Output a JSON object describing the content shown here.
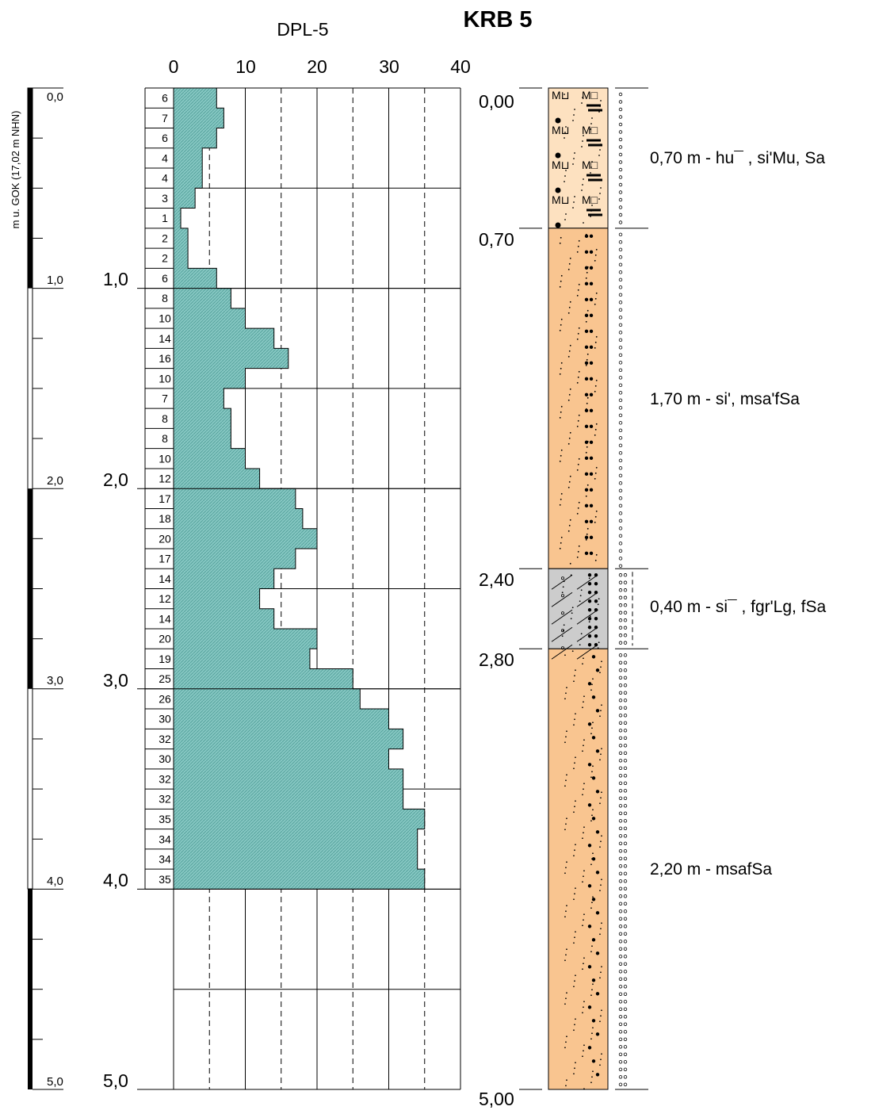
{
  "title": "KRB 5",
  "depth_axis": {
    "label": "m u. GOK (17,02 m NHN)",
    "ticks": [
      "0,0",
      "1,0",
      "2,0",
      "3,0",
      "4,0",
      "5,0"
    ]
  },
  "chart_data": {
    "type": "bar",
    "title": "DPL-5",
    "orientation": "horizontal-step",
    "x_ticks": [
      "0",
      "10",
      "20",
      "30",
      "40"
    ],
    "xlim": [
      0,
      40
    ],
    "depth_labels": [
      "1,0",
      "2,0",
      "3,0",
      "4,0",
      "5,0"
    ],
    "ylim": [
      0,
      5
    ],
    "interval_m": 0.1,
    "blow_counts": [
      6,
      7,
      6,
      4,
      4,
      3,
      1,
      2,
      2,
      6,
      8,
      10,
      14,
      16,
      10,
      7,
      8,
      8,
      10,
      12,
      17,
      18,
      20,
      17,
      14,
      12,
      14,
      20,
      19,
      25,
      26,
      30,
      32,
      30,
      32,
      32,
      35,
      34,
      34,
      35
    ],
    "grid": true,
    "fill_color": "#86c7c2"
  },
  "profile": {
    "depth_labels": [
      "0,00",
      "0,70",
      "2,40",
      "2,80",
      "5,00"
    ],
    "layers": [
      {
        "top": 0.0,
        "bottom": 0.7,
        "color": "#fde1c0",
        "pattern": "humus-silt-sand",
        "description": "0,70 m  - hu¯ , si'Mu, Sa"
      },
      {
        "top": 0.7,
        "bottom": 2.4,
        "color": "#f9c590",
        "pattern": "fine-sand-silty",
        "description": "1,70 m  - si', msa'fSa"
      },
      {
        "top": 2.4,
        "bottom": 2.8,
        "color": "#cccccc",
        "pattern": "loam-gravel",
        "description": "0,40 m  - si¯ , fgr'Lg, fSa"
      },
      {
        "top": 2.8,
        "bottom": 5.0,
        "color": "#f9c590",
        "pattern": "medium-fine-sand",
        "description": "2,20 m  - msafSa"
      }
    ]
  }
}
